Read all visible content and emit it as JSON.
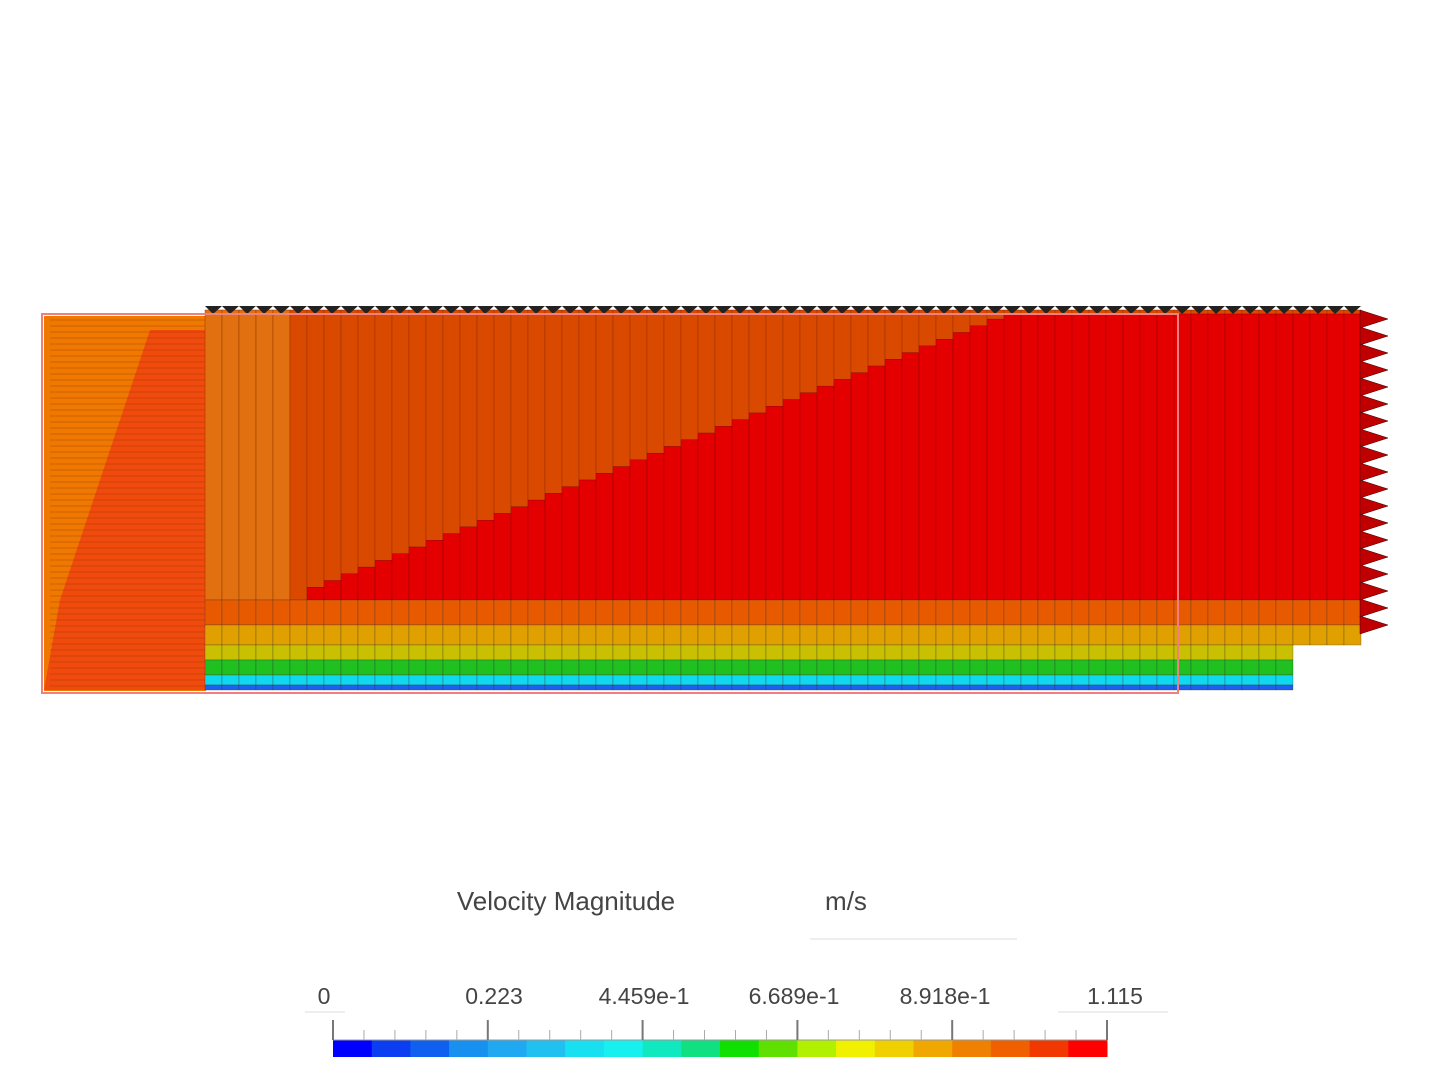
{
  "legend": {
    "title": "Velocity Magnitude",
    "unit": "m/s",
    "ticks": [
      "0",
      "0.223",
      "4.459e-1",
      "6.689e-1",
      "8.918e-1",
      "1.115"
    ]
  }
}
